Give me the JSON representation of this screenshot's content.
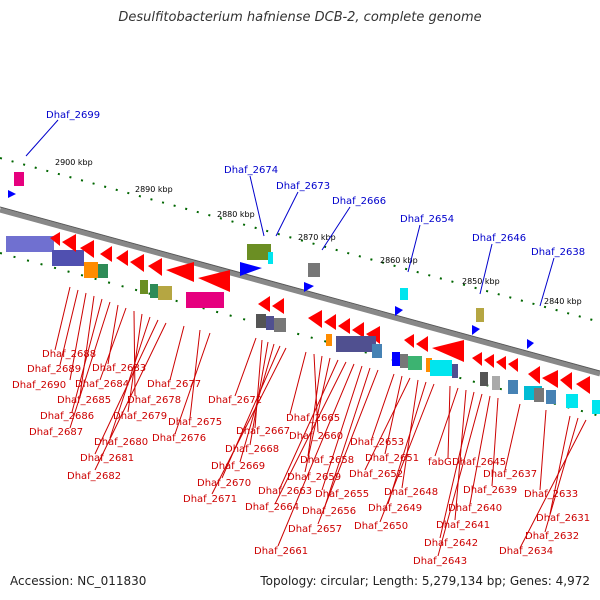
{
  "title": "Desulfitobacterium hafniense DCB-2, complete genome",
  "accession": "Accession: NC_011830",
  "summary": "Topology: circular; Length: 5,279,134 bp; Genes: 4,972",
  "kbp_labels": [
    "2900 kbp",
    "2890 kbp",
    "2880 kbp",
    "2870 kbp",
    "2860 kbp",
    "2850 kbp",
    "2840 kbp"
  ],
  "top_labels": [
    "Dhaf_2699",
    "Dhaf_2674",
    "Dhaf_2673",
    "Dhaf_2666",
    "Dhaf_2654",
    "Dhaf_2646",
    "Dhaf_2638"
  ],
  "bottom_labels": [
    "Dhaf_2688",
    "Dhaf_2689",
    "Dhaf_2690",
    "Dhaf_2685",
    "Dhaf_2686",
    "Dhaf_2687",
    "Dhaf_2683",
    "Dhaf_2684",
    "Dhaf_2678",
    "Dhaf_2679",
    "Dhaf_2680",
    "Dhaf_2681",
    "Dhaf_2682",
    "Dhaf_2677",
    "Dhaf_2675",
    "Dhaf_2676",
    "Dhaf_2672",
    "Dhaf_2667",
    "Dhaf_2668",
    "Dhaf_2669",
    "Dhaf_2670",
    "Dhaf_2671",
    "Dhaf_2665",
    "Dhaf_2660",
    "Dhaf_2658",
    "Dhaf_2659",
    "Dhaf_2663",
    "Dhaf_2664",
    "Dhaf_2661",
    "Dhaf_2655",
    "Dhaf_2656",
    "Dhaf_2657",
    "Dhaf_2653",
    "Dhaf_2651",
    "Dhaf_2652",
    "Dhaf_2648",
    "Dhaf_2649",
    "Dhaf_2650",
    "Dhaf_2645",
    "fabG",
    "Dhaf_2641",
    "Dhaf_2642",
    "Dhaf_2643",
    "Dhaf_2640",
    "Dhaf_2639",
    "Dhaf_2637",
    "Dhaf_2633",
    "Dhaf_2631",
    "Dhaf_2632",
    "Dhaf_2634"
  ]
}
